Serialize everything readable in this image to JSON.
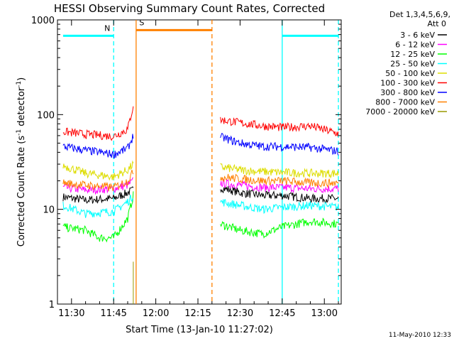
{
  "chart_data": {
    "type": "line",
    "title": "HESSI Observing Summary Count Rates, Corrected",
    "xlabel": "Start Time (13-Jan-10 11:27:02)",
    "ylabel_main": "Corrected Count Rate (s",
    "ylabel_sup1": "-1",
    "ylabel_mid": " detector",
    "ylabel_sup2": "-1",
    "ylabel_end": ")",
    "y_scale": "log",
    "ylim": [
      1,
      1000
    ],
    "y_ticks": [
      {
        "v": 1,
        "label": "1"
      },
      {
        "v": 10,
        "label": "10"
      },
      {
        "v": 100,
        "label": "100"
      },
      {
        "v": 1000,
        "label": "1000"
      }
    ],
    "xlim": [
      "11:25",
      "13:06"
    ],
    "x_ticks": [
      "11:30",
      "11:45",
      "12:00",
      "12:15",
      "12:30",
      "12:45",
      "13:00"
    ],
    "legend_header": [
      "Det 1,3,4,5,6,9,",
      "Att 0"
    ],
    "series": [
      {
        "name": "3 - 6 keV",
        "color": "#000000",
        "segments": [
          [
            [
              "11:27",
              13.5
            ],
            [
              "11:35",
              12.5
            ],
            [
              "11:45",
              13
            ],
            [
              "11:50",
              15
            ],
            [
              "11:52",
              16
            ]
          ],
          [
            [
              "12:23",
              17
            ],
            [
              "12:30",
              15
            ],
            [
              "12:38",
              14
            ],
            [
              "12:45",
              14
            ],
            [
              "12:55",
              13
            ],
            [
              "13:05",
              13
            ]
          ]
        ]
      },
      {
        "name": "6 - 12 keV",
        "color": "#ff00ff",
        "segments": [
          [
            [
              "11:27",
              17
            ],
            [
              "11:35",
              16
            ],
            [
              "11:45",
              16.5
            ],
            [
              "11:50",
              18
            ],
            [
              "11:52",
              20
            ]
          ],
          [
            [
              "12:23",
              19
            ],
            [
              "12:30",
              18
            ],
            [
              "12:38",
              17
            ],
            [
              "12:45",
              17
            ],
            [
              "12:55",
              16.5
            ],
            [
              "13:05",
              16.5
            ]
          ]
        ]
      },
      {
        "name": "12 - 25 keV",
        "color": "#00ff00",
        "segments": [
          [
            [
              "11:27",
              6.5
            ],
            [
              "11:35",
              6
            ],
            [
              "11:40",
              5
            ],
            [
              "11:45",
              5
            ],
            [
              "11:50",
              8
            ],
            [
              "11:52",
              14
            ]
          ],
          [
            [
              "12:23",
              7
            ],
            [
              "12:30",
              6
            ],
            [
              "12:38",
              5.5
            ],
            [
              "12:45",
              6.5
            ],
            [
              "12:55",
              7.5
            ],
            [
              "13:05",
              7
            ]
          ]
        ]
      },
      {
        "name": "25 - 50 keV",
        "color": "#00ffff",
        "segments": [
          [
            [
              "11:27",
              11
            ],
            [
              "11:35",
              9
            ],
            [
              "11:45",
              9.5
            ],
            [
              "11:50",
              12
            ],
            [
              "11:52",
              14
            ]
          ],
          [
            [
              "12:23",
              12
            ],
            [
              "12:30",
              11
            ],
            [
              "12:38",
              10
            ],
            [
              "12:45",
              10.5
            ],
            [
              "12:55",
              11
            ],
            [
              "13:05",
              10.5
            ]
          ]
        ]
      },
      {
        "name": "50 - 100 keV",
        "color": "#dddd00",
        "segments": [
          [
            [
              "11:27",
              29
            ],
            [
              "11:35",
              24
            ],
            [
              "11:45",
              22
            ],
            [
              "11:50",
              26
            ],
            [
              "11:52",
              30
            ]
          ],
          [
            [
              "12:23",
              28
            ],
            [
              "12:30",
              26
            ],
            [
              "12:38",
              25
            ],
            [
              "12:45",
              24.5
            ],
            [
              "12:55",
              24
            ],
            [
              "13:05",
              24
            ]
          ]
        ]
      },
      {
        "name": "100 - 300 keV",
        "color": "#ff0000",
        "segments": [
          [
            [
              "11:27",
              66
            ],
            [
              "11:35",
              62
            ],
            [
              "11:45",
              59
            ],
            [
              "11:50",
              70
            ],
            [
              "11:52",
              125
            ]
          ],
          [
            [
              "12:23",
              88
            ],
            [
              "12:30",
              82
            ],
            [
              "12:38",
              76
            ],
            [
              "12:45",
              73
            ],
            [
              "12:55",
              76
            ],
            [
              "13:05",
              63
            ]
          ]
        ]
      },
      {
        "name": "300 - 800 keV",
        "color": "#0000ff",
        "segments": [
          [
            [
              "11:27",
              46
            ],
            [
              "11:35",
              42
            ],
            [
              "11:45",
              38
            ],
            [
              "11:50",
              44
            ],
            [
              "11:52",
              60
            ]
          ],
          [
            [
              "12:23",
              58
            ],
            [
              "12:30",
              50
            ],
            [
              "12:38",
              46
            ],
            [
              "12:45",
              46
            ],
            [
              "12:55",
              45
            ],
            [
              "13:05",
              41
            ]
          ]
        ]
      },
      {
        "name": "800 - 7000 keV",
        "color": "#ff8000",
        "segments": [
          [
            [
              "11:27",
              19
            ],
            [
              "11:35",
              18
            ],
            [
              "11:45",
              17
            ],
            [
              "11:50",
              20
            ],
            [
              "11:52",
              25
            ]
          ],
          [
            [
              "12:23",
              22
            ],
            [
              "12:30",
              21
            ],
            [
              "12:38",
              20
            ],
            [
              "12:45",
              20
            ],
            [
              "12:55",
              19
            ],
            [
              "13:05",
              19
            ]
          ]
        ]
      },
      {
        "name": "7000 - 20000 keV",
        "color": "#999900",
        "segments": [
          [
            [
              "11:52",
              1
            ],
            [
              "11:52",
              2.8
            ],
            [
              "11:52",
              1
            ]
          ]
        ]
      }
    ],
    "annotations": [
      {
        "label": "N",
        "color": "#00ffff",
        "start": "11:27",
        "end": "11:45",
        "level": 680
      },
      {
        "label": "S",
        "color": "#ff8000",
        "start": "11:53",
        "end": "12:20",
        "level": 780
      },
      {
        "label": "",
        "color": "#00ffff",
        "start": "12:45",
        "end": "13:05",
        "level": 680
      }
    ],
    "vlines": [
      {
        "t": "11:45",
        "color": "#00ffff",
        "dashed": true
      },
      {
        "t": "11:53",
        "color": "#ff8000",
        "dashed": false
      },
      {
        "t": "12:20",
        "color": "#ff8000",
        "dashed": true
      },
      {
        "t": "12:45",
        "color": "#00ffff",
        "dashed": false
      },
      {
        "t": "13:05",
        "color": "#00ffff",
        "dashed": true
      }
    ],
    "grid": false,
    "legend_position": "top-right",
    "timestamp": "11-May-2010 12:33"
  }
}
